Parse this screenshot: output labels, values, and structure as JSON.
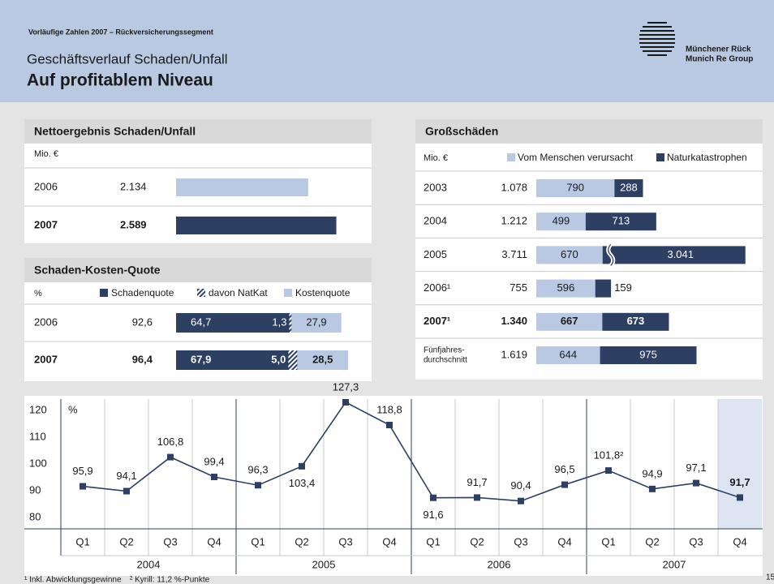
{
  "header": {
    "kicker": "Vorläufige Zahlen 2007 – Rückversicherungssegment",
    "subtitle": "Geschäftsverlauf Schaden/Unfall",
    "title": "Auf profitablem Niveau",
    "logo": [
      "Münchener Rück",
      "Munich Re Group"
    ],
    "page_number": "15"
  },
  "net_result": {
    "title": "Nettoergebnis Schaden/Unfall",
    "unit": "Mio. €",
    "rows": [
      {
        "label": "2006",
        "value": {
          "value": 2134,
          "label": "2.134"
        },
        "color": "#b9c9e3",
        "emphasis": false
      },
      {
        "label": "2007",
        "value": {
          "value": 2589,
          "label": "2.589"
        },
        "color": "#2d3f63",
        "emphasis": true
      }
    ]
  },
  "combined_ratio": {
    "title": "Schaden-Kosten-Quote",
    "unit": "%",
    "legend": [
      {
        "name": "Schadenquote",
        "color": "#2d3f63"
      },
      {
        "name": "davon NatKat",
        "color": "#2d3f63",
        "pattern": "hatch"
      },
      {
        "name": "Kostenquote",
        "color": "#b9c9e3"
      }
    ],
    "rows": [
      {
        "label": "2006",
        "emphasis": false,
        "total": {
          "value": 92.6,
          "label": "92,6"
        },
        "claims": {
          "value": 64.7,
          "label": "64,7"
        },
        "natcat": {
          "value": 1.3,
          "label": "1,3"
        },
        "expense": {
          "value": 27.9,
          "label": "27,9"
        }
      },
      {
        "label": "2007",
        "emphasis": true,
        "total": {
          "value": 96.4,
          "label": "96,4"
        },
        "claims": {
          "value": 67.9,
          "label": "67,9"
        },
        "natcat": {
          "value": 5.0,
          "label": "5,0"
        },
        "expense": {
          "value": 28.5,
          "label": "28,5"
        }
      }
    ]
  },
  "large_losses": {
    "title": "Großschäden",
    "unit": "Mio. €",
    "legend": [
      {
        "name": "Vom Menschen verursacht",
        "color": "#b9c9e3"
      },
      {
        "name": "Naturkatastrophen",
        "color": "#2d3f63"
      }
    ],
    "rows": [
      {
        "label": "2003",
        "emphasis": false,
        "total": {
          "value": 1078,
          "label": "1.078"
        },
        "man_made": 790,
        "natcat": 288
      },
      {
        "label": "2004",
        "emphasis": false,
        "total": {
          "value": 1212,
          "label": "1.212"
        },
        "man_made": 499,
        "natcat": 713
      },
      {
        "label": "2005",
        "emphasis": false,
        "total": {
          "value": 3711,
          "label": "3.711"
        },
        "man_made": 670,
        "natcat": {
          "value": 3041,
          "label": "3.041"
        }
      },
      {
        "label": "2006¹",
        "emphasis": false,
        "total": 755,
        "man_made": 596,
        "natcat": 159
      },
      {
        "label": "2007¹",
        "emphasis": true,
        "total": {
          "value": 1340,
          "label": "1.340"
        },
        "man_made": 667,
        "natcat": 673
      },
      {
        "label": [
          "Fünfjahres-",
          "durchschnitt"
        ],
        "emphasis": false,
        "total": {
          "value": 1619,
          "label": "1.619"
        },
        "man_made": 644,
        "natcat": 975
      }
    ]
  },
  "quarterly": {
    "type": "line",
    "unit": "%",
    "color": "#2d3f63",
    "categories": [
      "Q1",
      "Q2",
      "Q3",
      "Q4",
      "Q1",
      "Q2",
      "Q3",
      "Q4",
      "Q1",
      "Q2",
      "Q3",
      "Q4",
      "Q1",
      "Q2",
      "Q3",
      "Q4"
    ],
    "years": [
      "2004",
      "2005",
      "2006",
      "2007"
    ],
    "values": [
      95.9,
      94.1,
      106.8,
      99.4,
      96.3,
      103.4,
      127.3,
      118.8,
      91.6,
      91.7,
      90.4,
      96.5,
      101.8,
      94.9,
      97.1,
      91.7
    ],
    "value_labels": [
      "95,9",
      "94,1",
      "106,8",
      "99,4",
      "96,3",
      "103,4",
      "127,3",
      "118,8",
      "91,6",
      "91,7",
      "90,4",
      "96,5",
      "101,8²",
      "94,9",
      "97,1",
      "91,7"
    ],
    "ylim": [
      80,
      128.5
    ],
    "yticks": [
      80,
      90,
      100,
      110,
      120
    ],
    "highlight_last": true,
    "footnotes": [
      "¹ Inkl. Abwicklungsgewinne",
      "² Kyrill: 11,2 %-Punkte"
    ]
  }
}
